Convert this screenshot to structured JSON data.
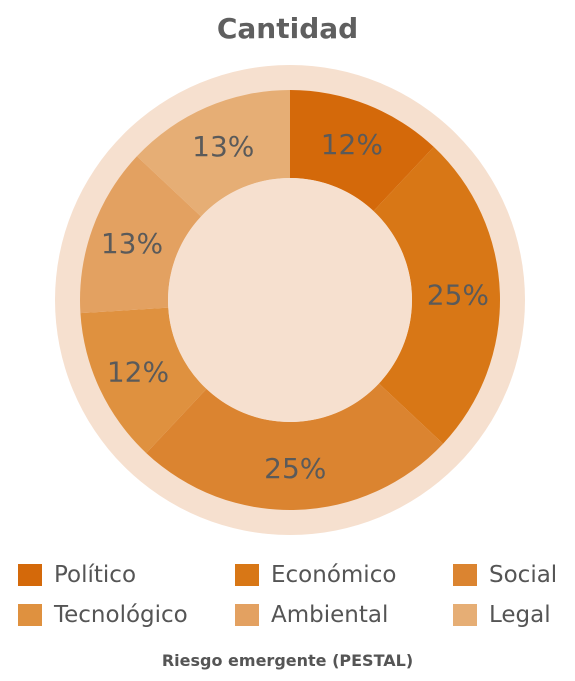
{
  "chart_data": {
    "type": "pie",
    "title": "Cantidad",
    "xlabel": "Riesgo emergente (PESTAL)",
    "categories": [
      "Político",
      "Económico",
      "Social",
      "Tecnológico",
      "Ambiental",
      "Legal"
    ],
    "values": [
      12,
      25,
      25,
      12,
      13,
      13
    ],
    "value_labels": [
      "12%",
      "25%",
      "25%",
      "12%",
      "13%",
      "13%"
    ],
    "colors": [
      "#D4690A",
      "#D87716",
      "#DB8430",
      "#DF913F",
      "#E3A161",
      "#E6AE75"
    ],
    "outer_ring_color": "#F6E0CF",
    "label_color": "#5a5a5a",
    "legend_position": "bottom"
  }
}
